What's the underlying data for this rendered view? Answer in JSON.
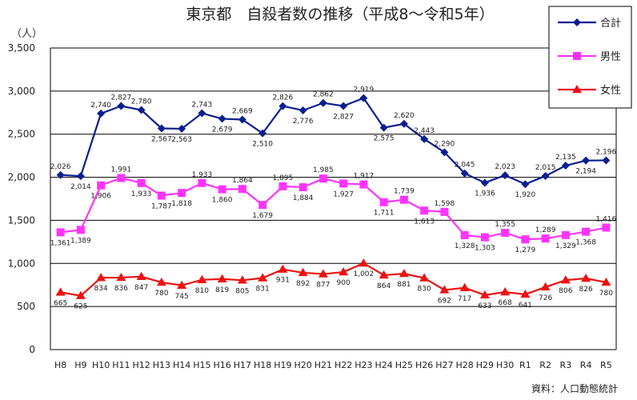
{
  "chart_data": {
    "type": "line",
    "title": "東京都　自殺者数の推移（平成8～令和5年）",
    "y_unit_label": "（人）",
    "source": "資料：人口動態統計",
    "ylim": [
      0,
      3500
    ],
    "yticks": [
      "0",
      "500",
      "1,000",
      "1,500",
      "2,000",
      "2,500",
      "3,000",
      "3,500"
    ],
    "grid": "horizontal",
    "legend_position": "top-right",
    "categories": [
      "H8",
      "H9",
      "H10",
      "H11",
      "H12",
      "H13",
      "H14",
      "H15",
      "H16",
      "H17",
      "H18",
      "H19",
      "H20",
      "H21",
      "H22",
      "H23",
      "H24",
      "H25",
      "H26",
      "H27",
      "H28",
      "H29",
      "H30",
      "R1",
      "R2",
      "R3",
      "R4",
      "R5"
    ],
    "series": [
      {
        "name": "合計",
        "color": "#0a1f8f",
        "marker": "diamond",
        "values": [
          2026,
          2014,
          2740,
          2827,
          2780,
          2567,
          2563,
          2743,
          2679,
          2669,
          2510,
          2826,
          2776,
          2862,
          2827,
          2919,
          2575,
          2620,
          2443,
          2290,
          2045,
          1936,
          2023,
          1920,
          2015,
          2135,
          2194,
          2196
        ],
        "labels": [
          "2,026",
          "2,014",
          "2,740",
          "2,827",
          "2,780",
          "2,567",
          "2,563",
          "2,743",
          "2,679",
          "2,669",
          "2,510",
          "2,826",
          "2,776",
          "2,862",
          "2,827",
          "2,919",
          "2,575",
          "2,620",
          "2,443",
          "2,290",
          "2,045",
          "1,936",
          "2,023",
          "1,920",
          "2,015",
          "2,135",
          "2,194",
          "2,196"
        ],
        "label_pos": [
          "above",
          "below",
          "above",
          "above",
          "above",
          "below",
          "below",
          "above",
          "below",
          "above",
          "below",
          "above",
          "below",
          "above",
          "below",
          "above",
          "below",
          "above",
          "above",
          "above",
          "above",
          "below",
          "above",
          "below",
          "above",
          "above",
          "below",
          "above"
        ]
      },
      {
        "name": "男性",
        "color": "#ff33ff",
        "marker": "square",
        "values": [
          1361,
          1389,
          1906,
          1991,
          1933,
          1787,
          1818,
          1933,
          1860,
          1864,
          1679,
          1895,
          1884,
          1985,
          1927,
          1917,
          1711,
          1739,
          1613,
          1598,
          1328,
          1303,
          1355,
          1279,
          1289,
          1329,
          1368,
          1416
        ],
        "labels": [
          "1,361",
          "1,389",
          "1,906",
          "1,991",
          "1,933",
          "1,787",
          "1,818",
          "1,933",
          "1,860",
          "1,864",
          "1,679",
          "1,895",
          "1,884",
          "1,985",
          "1,927",
          "1,917",
          "1,711",
          "1,739",
          "1,613",
          "1,598",
          "1,328",
          "1,303",
          "1,355",
          "1,279",
          "1,289",
          "1,329",
          "1,368",
          "1,416"
        ],
        "label_pos": [
          "below",
          "below",
          "below",
          "above",
          "below",
          "below",
          "below",
          "above",
          "below",
          "above",
          "below",
          "above",
          "below",
          "above",
          "below",
          "above",
          "below",
          "above",
          "below",
          "above",
          "below",
          "below",
          "above",
          "below",
          "above",
          "below",
          "below",
          "above"
        ]
      },
      {
        "name": "女性",
        "color": "#ee1111",
        "marker": "triangle",
        "values": [
          665,
          625,
          834,
          836,
          847,
          780,
          745,
          810,
          819,
          805,
          831,
          931,
          892,
          877,
          900,
          1002,
          864,
          881,
          830,
          692,
          717,
          633,
          668,
          641,
          726,
          806,
          826,
          780
        ],
        "labels": [
          "665",
          "625",
          "834",
          "836",
          "847",
          "780",
          "745",
          "810",
          "819",
          "805",
          "831",
          "931",
          "892",
          "877",
          "900",
          "1,002",
          "864",
          "881",
          "830",
          "692",
          "717",
          "633",
          "668",
          "641",
          "726",
          "806",
          "826",
          "780"
        ],
        "label_pos": [
          "below",
          "below",
          "below",
          "below",
          "below",
          "below",
          "below",
          "below",
          "below",
          "below",
          "below",
          "below",
          "below",
          "below",
          "below",
          "below",
          "below",
          "below",
          "below",
          "below",
          "below",
          "below",
          "below",
          "below",
          "below",
          "below",
          "below",
          "below"
        ]
      }
    ]
  }
}
